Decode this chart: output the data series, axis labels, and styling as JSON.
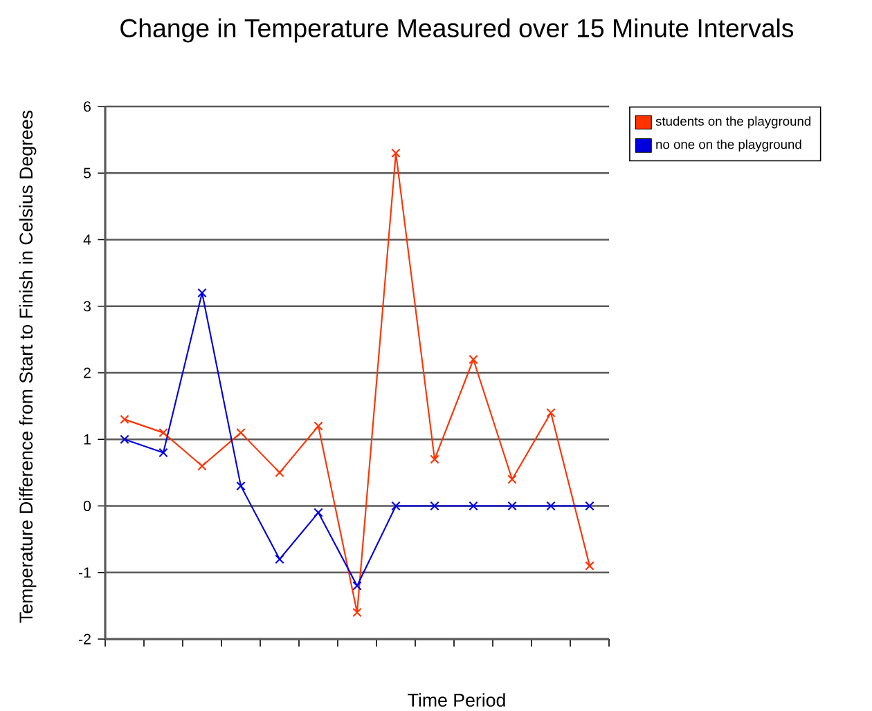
{
  "chart_data": {
    "type": "line",
    "title": "Change in Temperature Measured over 15 Minute Intervals",
    "xlabel": "Time Period",
    "ylabel": "Temperature Difference from Start to Finish in Celsius Degrees",
    "categories": [
      null,
      null,
      null,
      null,
      null,
      null,
      null,
      null,
      null,
      null,
      null,
      null,
      null
    ],
    "series": [
      {
        "name": "students on the playground",
        "color": "#ff3300",
        "values": [
          1.3,
          1.1,
          0.6,
          1.1,
          0.5,
          1.2,
          -1.6,
          5.3,
          0.7,
          2.2,
          0.4,
          1.4,
          -0.9
        ]
      },
      {
        "name": "no one on the playground",
        "color": "#0000dd",
        "values": [
          1.0,
          0.8,
          3.2,
          0.3,
          -0.8,
          -0.1,
          -1.2,
          0,
          0,
          0,
          0,
          0,
          0
        ]
      }
    ],
    "ylim": [
      -2,
      6
    ],
    "yticks": [
      -2,
      -1,
      0,
      1,
      2,
      3,
      4,
      5,
      6
    ],
    "grid": "y",
    "legend": "top right",
    "marker": "cross",
    "line_style": "solid",
    "tick_labels": "y"
  }
}
